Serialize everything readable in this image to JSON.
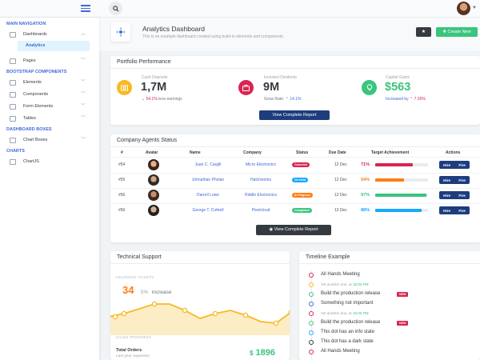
{
  "sidebar": {
    "headings": [
      "MAIN NAVIGATION",
      "BOOTSTRAP COMPONENTS",
      "DASHBOARD BOXES",
      "CHARTS"
    ],
    "dashboards_label": "Dashboards",
    "analytics_label": "Analytics",
    "pages_label": "Pages",
    "elements_label": "Elements",
    "components_label": "Components",
    "form_elements_label": "Form Elements",
    "tables_label": "Tables",
    "chart_boxes_label": "Chart Boxes",
    "chartjs_label": "ChartJS"
  },
  "header": {
    "title": "Analytics Dashboard",
    "subtitle": "This is an example dashboard created using build-in elements and components.",
    "create_button": "Create New"
  },
  "portfolio": {
    "title": "Portfolio Performance",
    "items": [
      {
        "label": "Cash Deposits",
        "value": "1,7M",
        "change": "54.1%",
        "change_text": "less earnings",
        "color": "#f7b924",
        "accent": "#d92550"
      },
      {
        "label": "Invested Dividents",
        "value": "9M",
        "change": "14.1%",
        "change_text": "Grow Rate:",
        "color": "#d92550",
        "accent": "#3f6ad8"
      },
      {
        "label": "Capital Gains",
        "value": "$563",
        "change": "7.35%",
        "change_text": "Increased by",
        "color": "#3ac47d",
        "accent": "#f7b924"
      }
    ],
    "button": "View Complete Report"
  },
  "agents": {
    "title": "Company Agents Status",
    "columns": [
      "#",
      "Avatar",
      "Name",
      "Company",
      "Status",
      "Due Date",
      "Target Achievement",
      "Actions"
    ],
    "rows": [
      {
        "id": "#54",
        "name": "Juan C. Cargill",
        "company": "Micro Electronics",
        "status": "Canceled",
        "status_color": "#d92550",
        "due": "12 Dec",
        "pct": "71%",
        "pct_value": 71,
        "bar_color": "#d92550"
      },
      {
        "id": "#55",
        "name": "Johnathan Phelan",
        "company": "Hatchworks",
        "status": "On Hold",
        "status_color": "#16aaff",
        "due": "12 Dec",
        "pct": "54%",
        "pct_value": 54,
        "bar_color": "#fd7e14"
      },
      {
        "id": "#56",
        "name": "Darrell Lowe",
        "company": "Riddle Electronics",
        "status": "In Progress",
        "status_color": "#fd7e14",
        "due": "12 Dec",
        "pct": "97%",
        "pct_value": 97,
        "bar_color": "#3ac47d"
      },
      {
        "id": "#56",
        "name": "George T. Cottrell",
        "company": "Pixelcloud",
        "status": "Completed",
        "status_color": "#3ac47d",
        "due": "12 Dec",
        "pct": "88%",
        "pct_value": 88,
        "bar_color": "#16aaff"
      }
    ],
    "hire_label": "Hire",
    "fire_label": "Fire",
    "button": "View Complete Report"
  },
  "support": {
    "title": "Technical Support",
    "helpdesk_label": "HELPDESK TICKETS",
    "value": "34",
    "percent": "5%",
    "increase": "increase",
    "sales_label": "SALES PROGRESS",
    "total_orders_label": "Total Orders",
    "total_orders_sub": "Last year expenses",
    "total_orders_value": "1896",
    "currency": "$",
    "line_color": "#f7b924",
    "chart_points": [
      20,
      24,
      30,
      36,
      36,
      28,
      18,
      24,
      28,
      22,
      14,
      12,
      26
    ]
  },
  "timeline": {
    "title": "Timeline Example",
    "items": [
      {
        "text": "All Hands Meeting",
        "color": "#d92550",
        "small": false,
        "badge": ""
      },
      {
        "text": "Yet another one, at",
        "time": "15:00 PM",
        "color": "#f7b924",
        "small": true,
        "badge": ""
      },
      {
        "text": "Build the production release",
        "color": "#3ac47d",
        "small": false,
        "badge": "NEW"
      },
      {
        "text": "Something not important",
        "color": "#3f6ad8",
        "small": false,
        "badge": ""
      },
      {
        "text": "Yet another one, at",
        "time": "15:00 PM",
        "color": "#d92550",
        "small": true,
        "badge": ""
      },
      {
        "text": "Build the production release",
        "color": "#3ac47d",
        "small": false,
        "badge": "NEW"
      },
      {
        "text": "This dot has an info state",
        "color": "#16aaff",
        "small": false,
        "badge": ""
      },
      {
        "text": "This dot has a dark state",
        "color": "#343a40",
        "small": false,
        "badge": ""
      },
      {
        "text": "All Hands Meeting",
        "color": "#d92550",
        "small": false,
        "badge": ""
      }
    ]
  }
}
